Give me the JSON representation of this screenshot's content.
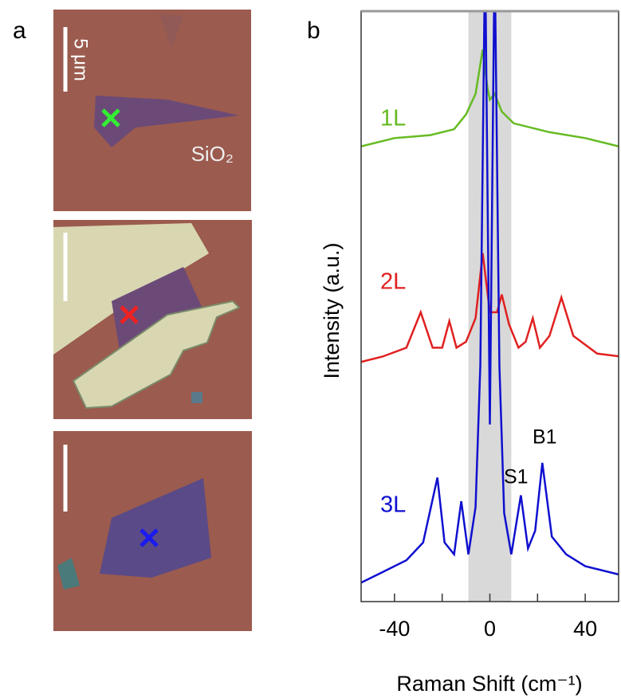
{
  "panel_labels": [
    "a",
    "b"
  ],
  "scale_bar": "5 μm",
  "substrate": "SiO₂",
  "chart_data": {
    "type": "line",
    "xlabel": "Raman Shift (cm⁻¹)",
    "ylabel": "Intensity (a.u.)",
    "xlim": [
      -54,
      54
    ],
    "xticks": [
      -40,
      0,
      40
    ],
    "minor_xticks": [
      -20,
      20
    ],
    "ylim": [
      0,
      10
    ],
    "shade": [
      -9,
      9
    ],
    "shade_color": "#d9d9d9",
    "series": [
      {
        "name": "1L",
        "color": "#66bb22",
        "x": [
          -55,
          -40,
          -25,
          -15,
          -10,
          -6,
          -3,
          -1,
          0,
          2,
          5,
          10,
          25,
          40,
          55
        ],
        "values": [
          7.7,
          7.85,
          7.9,
          8.0,
          8.25,
          8.6,
          9.35,
          8.7,
          8.5,
          8.6,
          8.3,
          8.1,
          7.95,
          7.85,
          7.7
        ]
      },
      {
        "name": "2L",
        "color": "#e02020",
        "x": [
          -55,
          -45,
          -35,
          -29,
          -24,
          -20,
          -17,
          -14,
          -10,
          -6,
          -3,
          0,
          3,
          5,
          8,
          12,
          15,
          18,
          21,
          25,
          30,
          35,
          45,
          55
        ],
        "values": [
          4.05,
          4.15,
          4.3,
          4.9,
          4.3,
          4.3,
          4.75,
          4.3,
          4.4,
          4.8,
          5.9,
          4.9,
          4.9,
          5.2,
          4.7,
          4.3,
          4.4,
          4.8,
          4.3,
          4.5,
          5.15,
          4.5,
          4.2,
          4.15
        ]
      },
      {
        "name": "3L",
        "color": "#1010d0",
        "x": [
          -55,
          -45,
          -35,
          -28,
          -22,
          -19,
          -15,
          -12,
          -9,
          -6,
          -4,
          -2,
          0,
          2,
          4,
          6,
          9,
          13,
          16,
          19,
          22,
          26,
          32,
          40,
          55
        ],
        "values": [
          0.3,
          0.5,
          0.7,
          1.0,
          2.1,
          1.0,
          0.8,
          1.7,
          0.8,
          1.6,
          4,
          11,
          3,
          11,
          4,
          1.5,
          0.8,
          1.8,
          0.9,
          1.2,
          2.35,
          1.1,
          0.8,
          0.6,
          0.45
        ]
      }
    ],
    "annotations": [
      "S1",
      "B1"
    ]
  }
}
